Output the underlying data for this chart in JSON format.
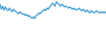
{
  "values": [
    3.5,
    2.2,
    3.0,
    2.0,
    2.8,
    2.2,
    1.8,
    2.5,
    2.0,
    1.5,
    2.2,
    1.8,
    1.5,
    1.2,
    1.0,
    1.5,
    1.2,
    0.8,
    1.0,
    0.5,
    0.8,
    0.3,
    0.5,
    0.0,
    -0.2,
    0.2,
    -0.3,
    0.5,
    0.8,
    1.2,
    1.0,
    1.5,
    1.8,
    2.2,
    1.8,
    2.5,
    2.2,
    2.8,
    3.2,
    3.8,
    3.5,
    3.0,
    4.2,
    3.8,
    3.5,
    3.0,
    3.5,
    3.2,
    2.8,
    3.0,
    2.8,
    2.5,
    2.8,
    2.5,
    2.2,
    2.5,
    2.2,
    2.0,
    2.2,
    2.5,
    2.0,
    1.8,
    2.2,
    1.8,
    1.5,
    2.0,
    1.5,
    1.2,
    1.8,
    1.5,
    1.2,
    1.5,
    1.8,
    1.5,
    1.2,
    1.5,
    1.2,
    1.5,
    1.2,
    1.5
  ],
  "line_color": "#3d9ed4",
  "background_color": "#ffffff",
  "linewidth": 1.0
}
